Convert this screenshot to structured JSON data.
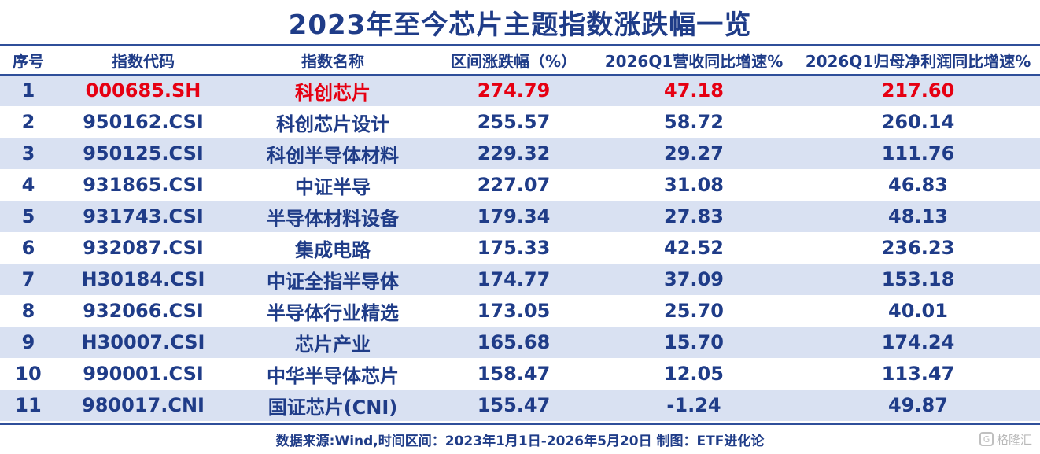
{
  "title": "2023年至今芯片主题指数涨跌幅一览",
  "columns": [
    "序号",
    "指数代码",
    "指数名称",
    "区间涨跌幅（%）",
    "2026Q1营收同比增速%",
    "2026Q1归母净利润同比增速%"
  ],
  "rows": [
    {
      "no": "1",
      "code": "000685.SH",
      "name": "科创芯片",
      "change": "274.79",
      "revenue": "47.18",
      "profit": "217.60",
      "highlight": true
    },
    {
      "no": "2",
      "code": "950162.CSI",
      "name": "科创芯片设计",
      "change": "255.57",
      "revenue": "58.72",
      "profit": "260.14"
    },
    {
      "no": "3",
      "code": "950125.CSI",
      "name": "科创半导体材料",
      "change": "229.32",
      "revenue": "29.27",
      "profit": "111.76"
    },
    {
      "no": "4",
      "code": "931865.CSI",
      "name": "中证半导",
      "change": "227.07",
      "revenue": "31.08",
      "profit": "46.83"
    },
    {
      "no": "5",
      "code": "931743.CSI",
      "name": "半导体材料设备",
      "change": "179.34",
      "revenue": "27.83",
      "profit": "48.13"
    },
    {
      "no": "6",
      "code": "932087.CSI",
      "name": "集成电路",
      "change": "175.33",
      "revenue": "42.52",
      "profit": "236.23"
    },
    {
      "no": "7",
      "code": "H30184.CSI",
      "name": "中证全指半导体",
      "change": "174.77",
      "revenue": "37.09",
      "profit": "153.18"
    },
    {
      "no": "8",
      "code": "932066.CSI",
      "name": "半导体行业精选",
      "change": "173.05",
      "revenue": "25.70",
      "profit": "40.01"
    },
    {
      "no": "9",
      "code": "H30007.CSI",
      "name": "芯片产业",
      "change": "165.68",
      "revenue": "15.70",
      "profit": "174.24"
    },
    {
      "no": "10",
      "code": "990001.CSI",
      "name": "中华半导体芯片",
      "change": "158.47",
      "revenue": "12.05",
      "profit": "113.47"
    },
    {
      "no": "11",
      "code": "980017.CNI",
      "name": "国证芯片(CNI)",
      "change": "155.47",
      "revenue": "-1.24",
      "profit": "49.87"
    }
  ],
  "footer": "数据来源:Wind,时间区间：2023年1月1日-2026年5月20日 制图：ETF进化论",
  "watermark": "格隆汇",
  "colors": {
    "header_text": "#1f3c88",
    "stripe": "#d9e1f2",
    "highlight": "#e60012",
    "rule": "#2f4f9a"
  }
}
